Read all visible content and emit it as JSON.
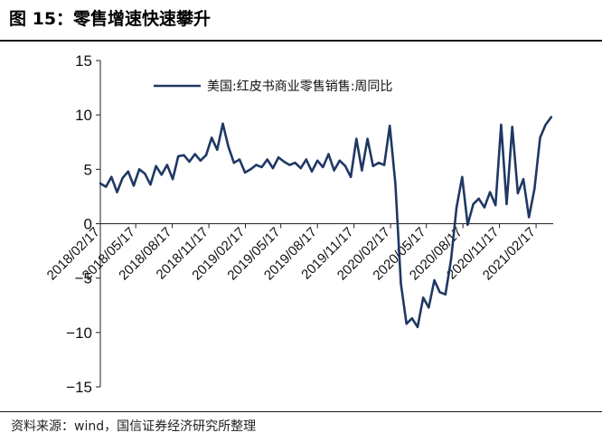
{
  "title": "图 15：零售增速快速攀升",
  "source": "资料来源：wind，国信证券经济研究所整理",
  "chart_data": {
    "type": "line",
    "ylim": [
      -15,
      15
    ],
    "yticks": [
      "15",
      "10",
      "5",
      "0",
      "−5",
      "−10",
      "−15"
    ],
    "yticks_values": [
      15,
      10,
      5,
      0,
      -5,
      -10,
      -15
    ],
    "xticks": [
      "2018/02/17",
      "2018/05/17",
      "2018/08/17",
      "2018/11/17",
      "2019/02/17",
      "2019/05/17",
      "2019/08/17",
      "2019/11/17",
      "2020/02/17",
      "2020/05/17",
      "2020/08/17",
      "2020/11/17",
      "2021/02/17"
    ],
    "legend_position": "top-center",
    "color": "#1f3864",
    "series": [
      {
        "name": "美国:红皮书商业零售销售:周同比",
        "x": [
          "2018-02-17",
          "2018-03-03",
          "2018-03-17",
          "2018-03-31",
          "2018-04-14",
          "2018-04-28",
          "2018-05-12",
          "2018-05-26",
          "2018-06-09",
          "2018-06-23",
          "2018-07-07",
          "2018-07-21",
          "2018-08-04",
          "2018-08-18",
          "2018-09-01",
          "2018-09-15",
          "2018-09-29",
          "2018-10-13",
          "2018-10-27",
          "2018-11-10",
          "2018-11-24",
          "2018-12-08",
          "2018-12-22",
          "2019-01-05",
          "2019-01-19",
          "2019-02-02",
          "2019-02-16",
          "2019-03-02",
          "2019-03-16",
          "2019-03-30",
          "2019-04-13",
          "2019-04-27",
          "2019-05-11",
          "2019-05-25",
          "2019-06-08",
          "2019-06-22",
          "2019-07-06",
          "2019-07-20",
          "2019-08-03",
          "2019-08-17",
          "2019-08-31",
          "2019-09-14",
          "2019-09-28",
          "2019-10-12",
          "2019-10-26",
          "2019-11-09",
          "2019-11-23",
          "2019-12-07",
          "2019-12-21",
          "2020-01-04",
          "2020-01-18",
          "2020-02-01",
          "2020-02-15",
          "2020-02-29",
          "2020-03-14",
          "2020-03-28",
          "2020-04-11",
          "2020-04-25",
          "2020-05-09",
          "2020-05-23",
          "2020-06-06",
          "2020-06-20",
          "2020-07-04",
          "2020-07-18",
          "2020-08-01",
          "2020-08-15",
          "2020-08-29",
          "2020-09-12",
          "2020-09-26",
          "2020-10-10",
          "2020-10-24",
          "2020-11-07",
          "2020-11-21",
          "2020-12-05",
          "2020-12-19",
          "2021-01-02",
          "2021-01-16",
          "2021-01-30",
          "2021-02-13",
          "2021-02-27",
          "2021-03-13",
          "2021-03-27"
        ],
        "values": [
          3.7,
          3.4,
          4.3,
          2.9,
          4.2,
          4.8,
          3.5,
          5.0,
          4.6,
          3.6,
          5.3,
          4.5,
          5.4,
          4.1,
          6.2,
          6.3,
          5.7,
          6.4,
          5.8,
          6.3,
          7.9,
          6.8,
          9.2,
          7.1,
          5.6,
          5.9,
          4.7,
          5.0,
          5.4,
          5.2,
          5.9,
          5.1,
          6.1,
          5.7,
          5.4,
          5.6,
          5.1,
          5.9,
          4.8,
          5.8,
          5.2,
          6.4,
          4.9,
          5.8,
          5.3,
          4.3,
          7.8,
          4.9,
          7.8,
          5.3,
          5.6,
          5.4,
          9.0,
          3.7,
          -5.5,
          -9.2,
          -8.7,
          -9.5,
          -6.8,
          -7.7,
          -5.2,
          -6.3,
          -6.5,
          -3.3,
          1.5,
          4.3,
          -0.1,
          1.8,
          2.3,
          1.5,
          2.9,
          1.7,
          9.1,
          1.8,
          8.9,
          2.8,
          4.1,
          0.6,
          3.2,
          7.9,
          9.1,
          9.8
        ]
      }
    ]
  }
}
